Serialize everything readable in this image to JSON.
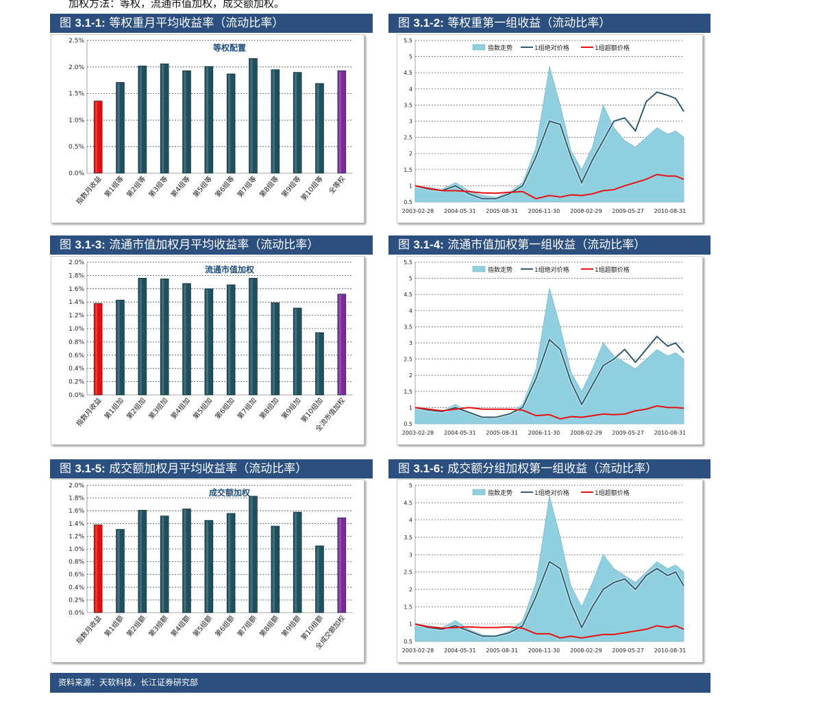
{
  "intro": "加权方法：等权，流通市值加权，成交额加权。",
  "source": "资料来源：天软科技，长江证券研究部",
  "colors": {
    "header": "#2b4f7e",
    "bar": "#1e5060",
    "bar_first": "#e01010",
    "bar_last": "#7a2a9a",
    "area": "#8fcfdf",
    "abs_line": "#2e5a6e",
    "excess_line": "#e81010"
  },
  "headers": [
    {
      "prefix": "图 ",
      "num": "3.1-1:",
      "text": " 等权重月平均收益率（流动比率）"
    },
    {
      "prefix": "图 ",
      "num": "3.1-2:",
      "text": " 等权重第一组收益（流动比率）"
    },
    {
      "prefix": "图 ",
      "num": "3.1-3:",
      "text": " 流通市值加权月平均收益率（流动比率）"
    },
    {
      "prefix": "图 ",
      "num": "3.1-4:",
      "text": " 流通市值加权第一组收益（流动比率）"
    },
    {
      "prefix": "图 ",
      "num": "3.1-5:",
      "text": " 成交额加权月平均收益率（流动比率）"
    },
    {
      "prefix": "图 ",
      "num": "3.1-6:",
      "text": " 成交额分组加权第一组收益（流动比率）"
    }
  ],
  "chart_data": [
    {
      "type": "bar",
      "title": "等权配置",
      "ylim": [
        0,
        0.025
      ],
      "yticks": [
        "0.0%",
        "0.5%",
        "1.0%",
        "1.5%",
        "2.0%",
        "2.5%"
      ],
      "categories": [
        "指数月收益",
        "第1组等",
        "第2组等",
        "第3组等",
        "第4组等",
        "第5组等",
        "第6组等",
        "第7组等",
        "第8组等",
        "第9组等",
        "第10组等",
        "全等权"
      ],
      "values": [
        0.0136,
        0.0171,
        0.0202,
        0.0206,
        0.0193,
        0.0201,
        0.0187,
        0.0216,
        0.0195,
        0.019,
        0.0169,
        0.0193
      ],
      "grid": true
    },
    {
      "type": "line",
      "ylim": [
        0.5,
        5.5
      ],
      "yticks": [
        "0.5",
        "1",
        "1.5",
        "2",
        "2.5",
        "3",
        "3.5",
        "4",
        "4.5",
        "5",
        "5.5"
      ],
      "xticks": [
        "2003-02-28",
        "2004-05-31",
        "2005-08-31",
        "2006-11-30",
        "2008-02-29",
        "2009-05-27",
        "2010-08-31"
      ],
      "legend": [
        "指数走势",
        "1组绝对价格",
        "1组超额价格"
      ],
      "x": [
        0,
        0.05,
        0.1,
        0.15,
        0.2,
        0.25,
        0.3,
        0.35,
        0.4,
        0.45,
        0.5,
        0.54,
        0.58,
        0.62,
        0.66,
        0.7,
        0.74,
        0.78,
        0.82,
        0.86,
        0.9,
        0.94,
        0.97,
        1
      ],
      "series": [
        {
          "name": "指数走势",
          "type": "area",
          "values": [
            1,
            0.95,
            0.9,
            1.1,
            0.85,
            0.7,
            0.65,
            0.8,
            1.1,
            2.2,
            4.7,
            3.5,
            2.1,
            1.5,
            2.2,
            3.5,
            2.8,
            2.4,
            2.2,
            2.5,
            2.8,
            2.6,
            2.7,
            2.5
          ]
        },
        {
          "name": "1组绝对价格",
          "type": "line",
          "values": [
            1,
            0.9,
            0.85,
            1.0,
            0.75,
            0.6,
            0.6,
            0.75,
            1.0,
            1.9,
            3.0,
            2.9,
            1.9,
            1.1,
            1.8,
            2.4,
            3.0,
            3.1,
            2.7,
            3.6,
            3.9,
            3.8,
            3.7,
            3.3
          ]
        },
        {
          "name": "1组超额价格",
          "type": "line",
          "values": [
            1,
            0.92,
            0.85,
            0.85,
            0.82,
            0.78,
            0.77,
            0.8,
            0.82,
            0.6,
            0.7,
            0.65,
            0.72,
            0.7,
            0.75,
            0.85,
            0.88,
            1.0,
            1.1,
            1.2,
            1.35,
            1.3,
            1.3,
            1.2
          ]
        }
      ],
      "grid": true
    },
    {
      "type": "bar",
      "title": "流通市值加权",
      "ylim": [
        0,
        0.02
      ],
      "yticks": [
        "0.0%",
        "0.2%",
        "0.4%",
        "0.6%",
        "0.8%",
        "1.0%",
        "1.2%",
        "1.4%",
        "1.6%",
        "1.8%",
        "2.0%"
      ],
      "categories": [
        "指数月收益",
        "第1组加",
        "第2组加",
        "第3组加",
        "第4组加",
        "第5组加",
        "第6组加",
        "第7组加",
        "第8组加",
        "第9组加",
        "第10组加",
        "全流市值加权"
      ],
      "values": [
        0.0138,
        0.0143,
        0.0176,
        0.0175,
        0.0168,
        0.016,
        0.0166,
        0.0176,
        0.0139,
        0.0131,
        0.0094,
        0.0152
      ],
      "grid": true
    },
    {
      "type": "line",
      "ylim": [
        0.5,
        5.5
      ],
      "yticks": [
        "0.5",
        "1",
        "1.5",
        "2",
        "2.5",
        "3",
        "3.5",
        "4",
        "4.5",
        "5",
        "5.5"
      ],
      "xticks": [
        "2003-02-28",
        "2004-05-31",
        "2005-08-31",
        "2006-11-30",
        "2008-02-29",
        "2009-05-27",
        "2010-08-31"
      ],
      "legend": [
        "指数走势",
        "1组绝对价格",
        "1组超额价格"
      ],
      "x": [
        0,
        0.05,
        0.1,
        0.15,
        0.2,
        0.25,
        0.3,
        0.35,
        0.4,
        0.45,
        0.5,
        0.54,
        0.58,
        0.62,
        0.66,
        0.7,
        0.74,
        0.78,
        0.82,
        0.86,
        0.9,
        0.94,
        0.97,
        1
      ],
      "series": [
        {
          "name": "指数走势",
          "type": "area",
          "values": [
            1,
            0.95,
            0.9,
            1.1,
            0.85,
            0.7,
            0.65,
            0.8,
            1.1,
            2.2,
            4.7,
            3.5,
            2.1,
            1.5,
            2.2,
            3.0,
            2.6,
            2.4,
            2.2,
            2.5,
            2.8,
            2.6,
            2.7,
            2.5
          ]
        },
        {
          "name": "1组绝对价格",
          "type": "line",
          "values": [
            1,
            0.92,
            0.88,
            1.0,
            0.85,
            0.7,
            0.7,
            0.8,
            1.0,
            1.9,
            3.1,
            2.8,
            1.8,
            1.1,
            1.7,
            2.3,
            2.5,
            2.8,
            2.4,
            2.8,
            3.2,
            2.9,
            3.0,
            2.7
          ]
        },
        {
          "name": "1组超额价格",
          "type": "line",
          "values": [
            1,
            0.95,
            0.9,
            0.95,
            1.0,
            0.95,
            0.95,
            0.95,
            0.92,
            0.75,
            0.78,
            0.65,
            0.72,
            0.7,
            0.75,
            0.8,
            0.78,
            0.8,
            0.9,
            0.95,
            1.05,
            1.0,
            1.0,
            0.98
          ]
        }
      ],
      "grid": true
    },
    {
      "type": "bar",
      "title": "成交额加权",
      "ylim": [
        0,
        0.02
      ],
      "yticks": [
        "0.0%",
        "0.2%",
        "0.4%",
        "0.6%",
        "0.8%",
        "1.0%",
        "1.2%",
        "1.4%",
        "1.6%",
        "1.8%",
        "2.0%"
      ],
      "categories": [
        "指数月收益",
        "第1组额",
        "第2组额",
        "第3组额",
        "第4组额",
        "第5组额",
        "第6组额",
        "第7组额",
        "第8组额",
        "第9组额",
        "第10组额",
        "全成交额加权"
      ],
      "values": [
        0.0138,
        0.0131,
        0.0161,
        0.0152,
        0.0163,
        0.0145,
        0.0156,
        0.0183,
        0.0136,
        0.0158,
        0.0105,
        0.0149
      ],
      "grid": true
    },
    {
      "type": "line",
      "ylim": [
        0.5,
        5
      ],
      "yticks": [
        "0.5",
        "1",
        "1.5",
        "2",
        "2.5",
        "3",
        "3.5",
        "4",
        "4.5",
        "5"
      ],
      "xticks": [
        "2003-02-28",
        "2004-05-31",
        "2005-08-31",
        "2006-11-30",
        "2008-02-29",
        "2009-05-27",
        "2010-08-31"
      ],
      "legend": [
        "指数走势",
        "1组绝对价格",
        "1组超额价格"
      ],
      "x": [
        0,
        0.05,
        0.1,
        0.15,
        0.2,
        0.25,
        0.3,
        0.35,
        0.4,
        0.45,
        0.5,
        0.54,
        0.58,
        0.62,
        0.66,
        0.7,
        0.74,
        0.78,
        0.82,
        0.86,
        0.9,
        0.94,
        0.97,
        1
      ],
      "series": [
        {
          "name": "指数走势",
          "type": "area",
          "values": [
            1,
            0.95,
            0.9,
            1.1,
            0.85,
            0.7,
            0.65,
            0.8,
            1.1,
            2.2,
            4.7,
            3.5,
            2.1,
            1.5,
            2.2,
            3.0,
            2.6,
            2.4,
            2.2,
            2.5,
            2.8,
            2.6,
            2.7,
            2.5
          ]
        },
        {
          "name": "1组绝对价格",
          "type": "line",
          "values": [
            1,
            0.9,
            0.85,
            0.95,
            0.8,
            0.65,
            0.65,
            0.75,
            0.95,
            1.8,
            2.8,
            2.6,
            1.6,
            0.9,
            1.5,
            2.0,
            2.2,
            2.3,
            2.0,
            2.4,
            2.6,
            2.4,
            2.5,
            2.1
          ]
        },
        {
          "name": "1组超额价格",
          "type": "line",
          "values": [
            1,
            0.92,
            0.88,
            0.9,
            0.92,
            0.9,
            0.9,
            0.92,
            0.88,
            0.72,
            0.72,
            0.6,
            0.65,
            0.6,
            0.65,
            0.7,
            0.7,
            0.75,
            0.8,
            0.85,
            0.95,
            0.9,
            0.95,
            0.85
          ]
        }
      ],
      "grid": true
    }
  ]
}
